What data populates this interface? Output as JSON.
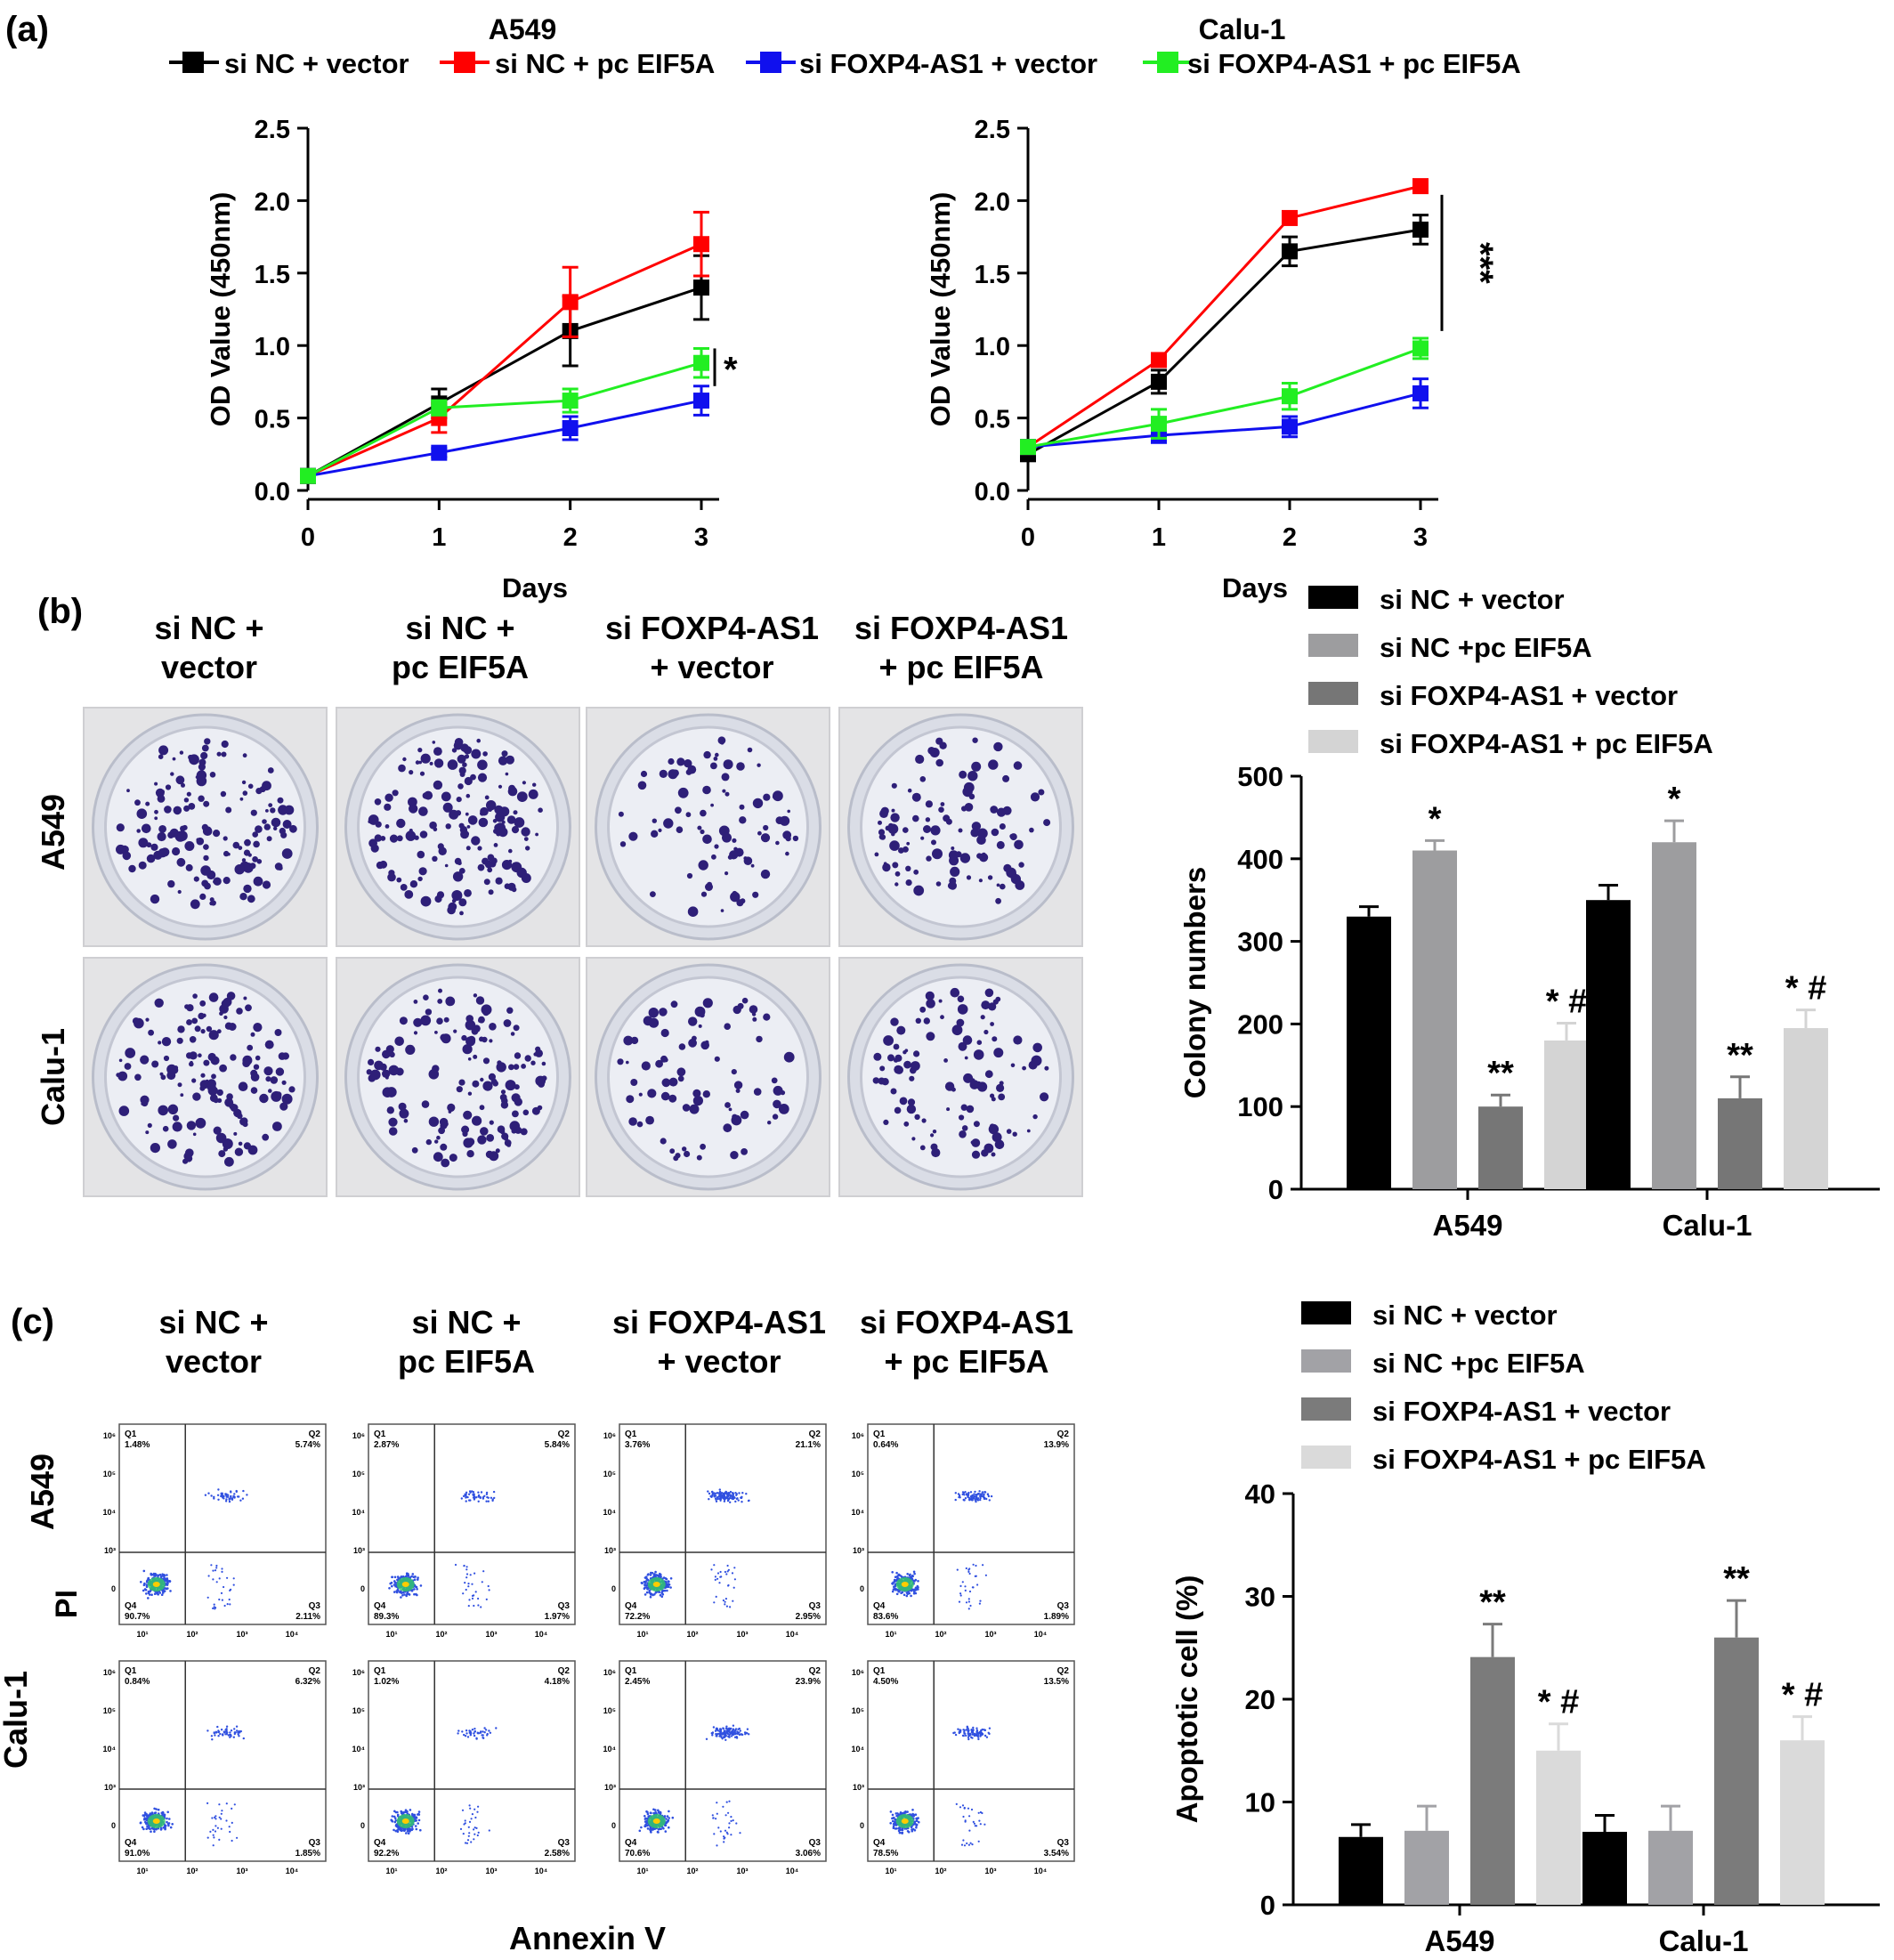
{
  "panel_labels": {
    "a": "(a)",
    "b": "(b)",
    "c": "(c)"
  },
  "colors": {
    "si_nc_vector": "#000000",
    "si_nc_pc": "#ff0000",
    "si_foxp4_vector": "#1010ee",
    "si_foxp4_pc": "#22ee22",
    "bar_b": [
      "#000000",
      "#9d9d9f",
      "#767676",
      "#d4d4d4"
    ],
    "bar_c": [
      "#000000",
      "#a2a2a6",
      "#7b7b7b",
      "#dadada"
    ],
    "colony_stain": "#2e1f78",
    "flow_dots": "#3050e0"
  },
  "panel_a": {
    "legend": [
      "si NC + vector",
      "si NC + pc EIF5A",
      "si FOXP4-AS1  + vector",
      "si FOXP4-AS1  + pc EIF5A"
    ],
    "xlabel": "Days",
    "ylabel": "OD Value (450nm)"
  },
  "panel_b": {
    "columns": [
      [
        "si NC +",
        "vector"
      ],
      [
        "si NC +",
        "pc EIF5A"
      ],
      [
        "si FOXP4-AS1",
        "+ vector"
      ],
      [
        "si FOXP4-AS1",
        "+ pc EIF5A"
      ]
    ],
    "rows": [
      "A549",
      "Calu-1"
    ],
    "legend": [
      "si NC + vector",
      "si NC +pc EIF5A",
      "si FOXP4-AS1 + vector",
      "si FOXP4-AS1 + pc EIF5A"
    ],
    "ylabel": "Colony numbers"
  },
  "panel_c": {
    "columns": [
      [
        "si NC +",
        "vector"
      ],
      [
        "si NC +",
        "pc EIF5A"
      ],
      [
        "si FOXP4-AS1",
        "+ vector"
      ],
      [
        "si FOXP4-AS1",
        "+ pc EIF5A"
      ]
    ],
    "rows": [
      "A549",
      "Calu-1"
    ],
    "axis_y_label": "PI",
    "axis_x_label": "Annexin V",
    "flow_tick_y": [
      "10⁶",
      "10⁵",
      "10⁴",
      "10³",
      "0"
    ],
    "flow_tick_x": [
      "10¹",
      "10²",
      "10³",
      "10⁴"
    ],
    "flow_plots": [
      {
        "q1": "1.48%",
        "q2": "5.74%",
        "q3": "2.11%",
        "q4": "90.7%"
      },
      {
        "q1": "2.87%",
        "q2": "5.84%",
        "q3": "1.97%",
        "q4": "89.3%"
      },
      {
        "q1": "3.76%",
        "q2": "21.1%",
        "q3": "2.95%",
        "q4": "72.2%"
      },
      {
        "q1": "0.64%",
        "q2": "13.9%",
        "q3": "1.89%",
        "q4": "83.6%"
      },
      {
        "q1": "0.84%",
        "q2": "6.32%",
        "q3": "1.85%",
        "q4": "91.0%"
      },
      {
        "q1": "1.02%",
        "q2": "4.18%",
        "q3": "2.58%",
        "q4": "92.2%"
      },
      {
        "q1": "2.45%",
        "q2": "23.9%",
        "q3": "3.06%",
        "q4": "70.6%"
      },
      {
        "q1": "4.50%",
        "q2": "13.5%",
        "q3": "3.54%",
        "q4": "78.5%"
      }
    ],
    "legend": [
      "si NC + vector",
      "si NC +pc EIF5A",
      "si FOXP4-AS1 + vector",
      "si FOXP4-AS1 + pc EIF5A"
    ],
    "ylabel": "Apoptotic cell (%)"
  },
  "chart_data": [
    {
      "type": "line",
      "title": "A549",
      "xlabel": "Days",
      "ylabel": "OD Value (450nm)",
      "x": [
        0,
        1,
        2,
        3
      ],
      "xlim": [
        0,
        3
      ],
      "ylim": [
        0,
        2.5
      ],
      "xticks": [
        "0",
        "1",
        "2",
        "3"
      ],
      "yticks": [
        "0.0",
        "0.5",
        "1.0",
        "1.5",
        "2.0",
        "2.5"
      ],
      "series": [
        {
          "name": "si NC + vector",
          "values": [
            0.1,
            0.6,
            1.1,
            1.4
          ],
          "err": [
            0.02,
            0.1,
            0.24,
            0.22
          ]
        },
        {
          "name": "si NC + pc EIF5A",
          "values": [
            0.1,
            0.5,
            1.3,
            1.7
          ],
          "err": [
            0.02,
            0.1,
            0.24,
            0.22
          ]
        },
        {
          "name": "si FOXP4-AS1  + vector",
          "values": [
            0.1,
            0.26,
            0.43,
            0.62
          ],
          "err": [
            0.02,
            0.03,
            0.08,
            0.1
          ]
        },
        {
          "name": "si FOXP4-AS1  + pc EIF5A",
          "values": [
            0.1,
            0.57,
            0.62,
            0.88
          ],
          "err": [
            0.02,
            0.05,
            0.08,
            0.1
          ]
        }
      ],
      "annotations": [
        "*"
      ],
      "legend": "top"
    },
    {
      "type": "line",
      "title": "Calu-1",
      "xlabel": "Days",
      "ylabel": "OD Value (450nm)",
      "x": [
        0,
        1,
        2,
        3
      ],
      "xlim": [
        0,
        3
      ],
      "ylim": [
        0,
        2.5
      ],
      "xticks": [
        "0",
        "1",
        "2",
        "3"
      ],
      "yticks": [
        "0.0",
        "0.5",
        "1.0",
        "1.5",
        "2.0",
        "2.5"
      ],
      "series": [
        {
          "name": "si NC + vector",
          "values": [
            0.25,
            0.75,
            1.65,
            1.8
          ],
          "err": [
            0.03,
            0.08,
            0.1,
            0.1
          ]
        },
        {
          "name": "si NC + pc EIF5A",
          "values": [
            0.3,
            0.9,
            1.88,
            2.1
          ],
          "err": [
            0.02,
            0.03,
            0.03,
            0.03
          ]
        },
        {
          "name": "si FOXP4-AS1  + vector",
          "values": [
            0.3,
            0.38,
            0.44,
            0.67
          ],
          "err": [
            0.03,
            0.05,
            0.07,
            0.1
          ]
        },
        {
          "name": "si FOXP4-AS1  + pc EIF5A",
          "values": [
            0.3,
            0.46,
            0.65,
            0.98
          ],
          "err": [
            0.03,
            0.1,
            0.09,
            0.07
          ]
        }
      ],
      "annotations": [
        "***"
      ],
      "legend": "top"
    },
    {
      "type": "bar",
      "categories": [
        "A549",
        "Calu-1"
      ],
      "ylabel": "Colony numbers",
      "ylim": [
        0,
        500
      ],
      "yticks": [
        "0",
        "100",
        "200",
        "300",
        "400",
        "500"
      ],
      "series": [
        {
          "name": "si NC + vector",
          "values": [
            330,
            350
          ],
          "err": [
            12,
            18
          ],
          "marks": [
            "",
            ""
          ]
        },
        {
          "name": "si NC +pc EIF5A",
          "values": [
            410,
            420
          ],
          "err": [
            12,
            26
          ],
          "marks": [
            "*",
            "*"
          ]
        },
        {
          "name": "si FOXP4-AS1 + vector",
          "values": [
            100,
            110
          ],
          "err": [
            14,
            26
          ],
          "marks": [
            "**",
            "**"
          ]
        },
        {
          "name": "si FOXP4-AS1 + pc EIF5A",
          "values": [
            180,
            195
          ],
          "err": [
            21,
            22
          ],
          "marks": [
            "* #",
            "* #"
          ]
        }
      ],
      "legend": "top"
    },
    {
      "type": "bar",
      "categories": [
        "A549",
        "Calu-1"
      ],
      "ylabel": "Apoptotic cell (%)",
      "ylim": [
        0,
        40
      ],
      "yticks": [
        "0",
        "10",
        "20",
        "30",
        "40"
      ],
      "series": [
        {
          "name": "si NC + vector",
          "values": [
            6.6,
            7.1
          ],
          "err": [
            1.2,
            1.6
          ],
          "marks": [
            "",
            ""
          ]
        },
        {
          "name": "si NC +pc EIF5A",
          "values": [
            7.2,
            7.2
          ],
          "err": [
            2.4,
            2.4
          ],
          "marks": [
            "",
            ""
          ]
        },
        {
          "name": "si FOXP4-AS1 + vector",
          "values": [
            24.1,
            26.0
          ],
          "err": [
            3.2,
            3.6
          ],
          "marks": [
            "**",
            "**"
          ]
        },
        {
          "name": "si FOXP4-AS1 + pc EIF5A",
          "values": [
            15.0,
            16.0
          ],
          "err": [
            2.6,
            2.3
          ],
          "marks": [
            "* #",
            "* #"
          ]
        }
      ],
      "legend": "top"
    }
  ]
}
